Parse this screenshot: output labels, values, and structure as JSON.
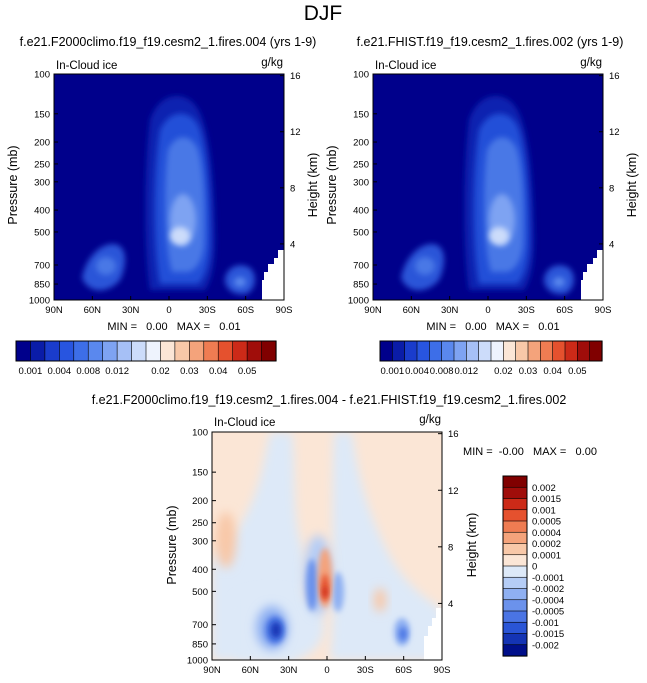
{
  "page": {
    "title": "DJF"
  },
  "colors": {
    "blue_scale": [
      "#00008b",
      "#0a1ca8",
      "#1a3ccc",
      "#2855e0",
      "#3d6ee8",
      "#5a88ee",
      "#7ea3f2",
      "#a6c0f6",
      "#ccdcfa",
      "#eef3fd"
    ],
    "red_scale": [
      "#fbe6d6",
      "#f8c8a8",
      "#f4a37b",
      "#ef7c52",
      "#e5512e",
      "#cc2a18",
      "#a00d0a",
      "#800000"
    ],
    "neutral": "#dde9f8"
  },
  "chart_data": [
    {
      "type": "heatmap",
      "title": "f.e21.F2000climo.f19_f19.cesm2_1.fires.004 (yrs 1-9)",
      "variable_label": "In-Cloud ice",
      "units_label": "g/kg",
      "ylabel": "Pressure (mb)",
      "ylabel_right": "Height (km)",
      "x_ticks": [
        "90N",
        "60N",
        "30N",
        "0",
        "30S",
        "60S",
        "90S"
      ],
      "y_ticks": [
        100,
        150,
        200,
        250,
        300,
        400,
        500,
        700,
        850,
        1000
      ],
      "y_ticks_right": [
        16,
        12,
        8,
        4
      ],
      "ylim": [
        1000,
        100
      ],
      "xlim": [
        "90N",
        "90S"
      ],
      "min_max_text": "MIN =   0.00   MAX =   0.01",
      "background": "#00008b",
      "features": [
        {
          "name": "tropical-core",
          "lat": 8,
          "p_top": 120,
          "p_bottom": 800,
          "level": 0.012
        },
        {
          "name": "northern-midlat",
          "lat": 60,
          "p_top": 620,
          "p_bottom": 960,
          "level": 0.004
        },
        {
          "name": "southern-highlat",
          "lat": 62,
          "p_top": 720,
          "p_bottom": 920,
          "level": 0.003
        }
      ]
    },
    {
      "type": "heatmap",
      "title": "f.e21.FHIST.f19_f19.cesm2_1.fires.002 (yrs 1-9)",
      "variable_label": "In-Cloud ice",
      "units_label": "g/kg",
      "ylabel": "Pressure (mb)",
      "ylabel_right": "Height (km)",
      "x_ticks": [
        "90N",
        "60N",
        "30N",
        "0",
        "30S",
        "60S",
        "90S"
      ],
      "y_ticks": [
        100,
        150,
        200,
        250,
        300,
        400,
        500,
        700,
        850,
        1000
      ],
      "y_ticks_right": [
        16,
        12,
        8,
        4
      ],
      "ylim": [
        1000,
        100
      ],
      "xlim": [
        "90N",
        "90S"
      ],
      "min_max_text": "MIN =   0.00   MAX =   0.01",
      "background": "#00008b",
      "features": [
        {
          "name": "tropical-core",
          "lat": 8,
          "p_top": 120,
          "p_bottom": 800,
          "level": 0.012
        },
        {
          "name": "northern-midlat",
          "lat": 60,
          "p_top": 620,
          "p_bottom": 960,
          "level": 0.004
        },
        {
          "name": "southern-highlat",
          "lat": 62,
          "p_top": 720,
          "p_bottom": 920,
          "level": 0.003
        }
      ]
    },
    {
      "type": "heatmap",
      "title": "f.e21.F2000climo.f19_f19.cesm2_1.fires.004 - f.e21.FHIST.f19_f19.cesm2_1.fires.002",
      "variable_label": "In-Cloud ice",
      "units_label": "g/kg",
      "ylabel": "Pressure (mb)",
      "ylabel_right": "Height (km)",
      "x_ticks": [
        "90N",
        "60N",
        "30N",
        "0",
        "30S",
        "60S",
        "90S"
      ],
      "y_ticks": [
        100,
        150,
        200,
        250,
        300,
        400,
        500,
        700,
        850,
        1000
      ],
      "y_ticks_right": [
        16,
        12,
        8,
        4
      ],
      "ylim": [
        1000,
        100
      ],
      "xlim": [
        "90N",
        "90S"
      ],
      "min_max_text": "MIN =  -0.00   MAX =   0.00",
      "background": "#fbe6d6",
      "features": [
        {
          "name": "positive-core",
          "lat": 4,
          "p_top": 400,
          "p_bottom": 560,
          "level": 0.001
        },
        {
          "name": "negative-dipole",
          "lat": 0,
          "p_top": 380,
          "p_bottom": 700,
          "level": -0.0005
        },
        {
          "name": "nh-negative",
          "lat": 42,
          "p_top": 620,
          "p_bottom": 900,
          "level": -0.001
        },
        {
          "name": "nh-positive",
          "lat": 82,
          "p_top": 260,
          "p_bottom": 360,
          "level": 0.0002
        },
        {
          "name": "sh-negative",
          "lat": 55,
          "p_top": 720,
          "p_bottom": 880,
          "level": -0.0005
        }
      ]
    }
  ],
  "colorbars": [
    {
      "orientation": "horizontal",
      "labels": [
        "0.001",
        "0.004",
        "0.008",
        "0.012",
        "0.02",
        "0.03",
        "0.04",
        "0.05"
      ],
      "colors": [
        "#00008b",
        "#0a1ca8",
        "#1a3ccc",
        "#2855e0",
        "#3d6ee8",
        "#5a88ee",
        "#7ea3f2",
        "#a6c0f6",
        "#ccdcfa",
        "#eef3fd",
        "#fbe6d6",
        "#f8c8a8",
        "#f4a37b",
        "#ef7c52",
        "#e5512e",
        "#cc2a18",
        "#a00d0a",
        "#800000"
      ]
    },
    {
      "orientation": "horizontal",
      "labels": [
        "0.001",
        "0.004",
        "0.008",
        "0.012",
        "0.02",
        "0.03",
        "0.04",
        "0.05"
      ],
      "colors": [
        "#00008b",
        "#0a1ca8",
        "#1a3ccc",
        "#2855e0",
        "#3d6ee8",
        "#5a88ee",
        "#7ea3f2",
        "#a6c0f6",
        "#ccdcfa",
        "#eef3fd",
        "#fbe6d6",
        "#f8c8a8",
        "#f4a37b",
        "#ef7c52",
        "#e5512e",
        "#cc2a18",
        "#a00d0a",
        "#800000"
      ]
    },
    {
      "orientation": "vertical",
      "labels": [
        "0.002",
        "0.0015",
        "0.001",
        "0.0005",
        "0.0004",
        "0.0002",
        "0.0001",
        "0",
        "-0.0001",
        "-0.0002",
        "-0.0004",
        "-0.0005",
        "-0.001",
        "-0.0015",
        "-0.002"
      ],
      "colors": [
        "#800000",
        "#a00d0a",
        "#cc2a18",
        "#e5512e",
        "#ef7c52",
        "#f4a37b",
        "#f8c8a8",
        "#fbe6d6",
        "#dde9f8",
        "#b5cdf6",
        "#8fb0f2",
        "#6b92ec",
        "#4a74e4",
        "#2a55d6",
        "#1434b4",
        "#000f8a"
      ]
    }
  ]
}
